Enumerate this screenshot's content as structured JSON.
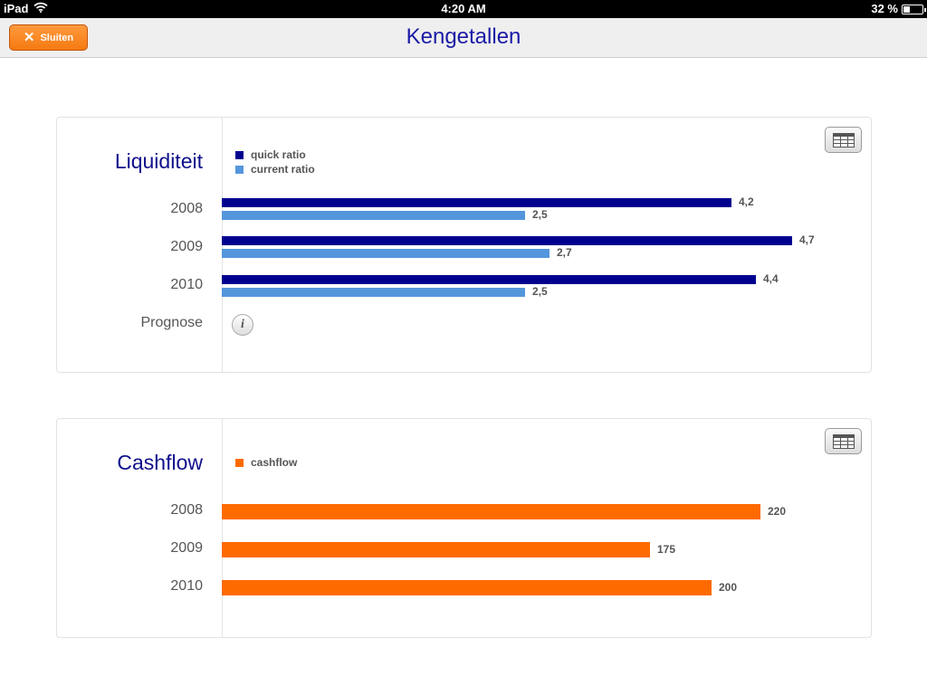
{
  "status_bar": {
    "device": "iPad",
    "time": "4:20 AM",
    "battery_text": "32 %",
    "battery_level": 0.32,
    "wifi_icon": "wifi-icon"
  },
  "nav": {
    "close_label": "Sluiten",
    "close_icon": "close-icon",
    "title": "Kengetallen"
  },
  "colors": {
    "quick_ratio": "#00008f",
    "current_ratio": "#5496dc",
    "cashflow": "#ff6a00",
    "title": "#0f0f8c"
  },
  "liquiditeit": {
    "title": "Liquiditeit",
    "prognose_label": "Prognose",
    "info_icon": "info-icon",
    "table_icon": "table-icon"
  },
  "cashflow": {
    "title": "Cashflow",
    "table_icon": "table-icon"
  },
  "chart_data": [
    {
      "type": "bar",
      "orientation": "horizontal",
      "title": "Liquiditeit",
      "categories": [
        "2008",
        "2009",
        "2010"
      ],
      "series": [
        {
          "name": "quick ratio",
          "values": [
            4.2,
            4.7,
            4.4
          ],
          "labels": [
            "4,2",
            "4,7",
            "4,4"
          ],
          "color": "#00008f"
        },
        {
          "name": "current ratio",
          "values": [
            2.5,
            2.7,
            2.5
          ],
          "labels": [
            "2,5",
            "2,7",
            "2,5"
          ],
          "color": "#5496dc"
        }
      ],
      "xlim": [
        0,
        4.7
      ],
      "legend": "top-left",
      "grid": false
    },
    {
      "type": "bar",
      "orientation": "horizontal",
      "title": "Cashflow",
      "categories": [
        "2008",
        "2009",
        "2010"
      ],
      "series": [
        {
          "name": "cashflow",
          "values": [
            220,
            175,
            200
          ],
          "labels": [
            "220",
            "175",
            "200"
          ],
          "color": "#ff6a00"
        }
      ],
      "xlim": [
        0,
        240
      ],
      "legend": "top-left",
      "grid": false
    }
  ]
}
